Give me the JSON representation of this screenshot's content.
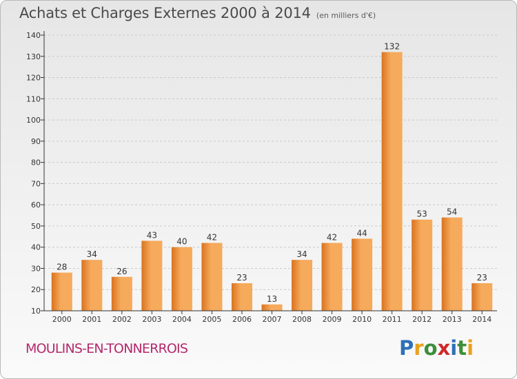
{
  "title": "Achats et Charges Externes 2000 à 2014",
  "unit": "(en milliers d'€)",
  "commune": "MOULINS-EN-TONNERROIS",
  "logo": {
    "text": "Proxiti",
    "letters": [
      {
        "ch": "P",
        "color": "#2f6fb8"
      },
      {
        "ch": "r",
        "color": "#e8a21d"
      },
      {
        "ch": "o",
        "color": "#3d8f3a"
      },
      {
        "ch": "x",
        "color": "#d02a2a"
      },
      {
        "ch": "i",
        "color": "#2f6fb8"
      },
      {
        "ch": "t",
        "color": "#3d8f3a"
      },
      {
        "ch": "i",
        "color": "#e8a21d"
      }
    ]
  },
  "colors": {
    "bar_light": "#f6aa5c",
    "bar_dark": "#d9731f",
    "axis": "#333333",
    "grid": "#c8c8c8"
  },
  "chart_data": {
    "type": "bar",
    "title": "Achats et Charges Externes 2000 à 2014",
    "xlabel": "",
    "ylabel": "",
    "categories": [
      "2000",
      "2001",
      "2002",
      "2003",
      "2004",
      "2005",
      "2006",
      "2007",
      "2008",
      "2009",
      "2010",
      "2011",
      "2012",
      "2013",
      "2014"
    ],
    "values": [
      28,
      34,
      26,
      43,
      40,
      42,
      23,
      13,
      34,
      42,
      44,
      132,
      53,
      54,
      23
    ],
    "ylim": [
      10,
      140
    ],
    "yticks": [
      10,
      20,
      30,
      40,
      50,
      60,
      70,
      80,
      90,
      100,
      110,
      120,
      130,
      140
    ],
    "grid": true,
    "legend": "none"
  }
}
